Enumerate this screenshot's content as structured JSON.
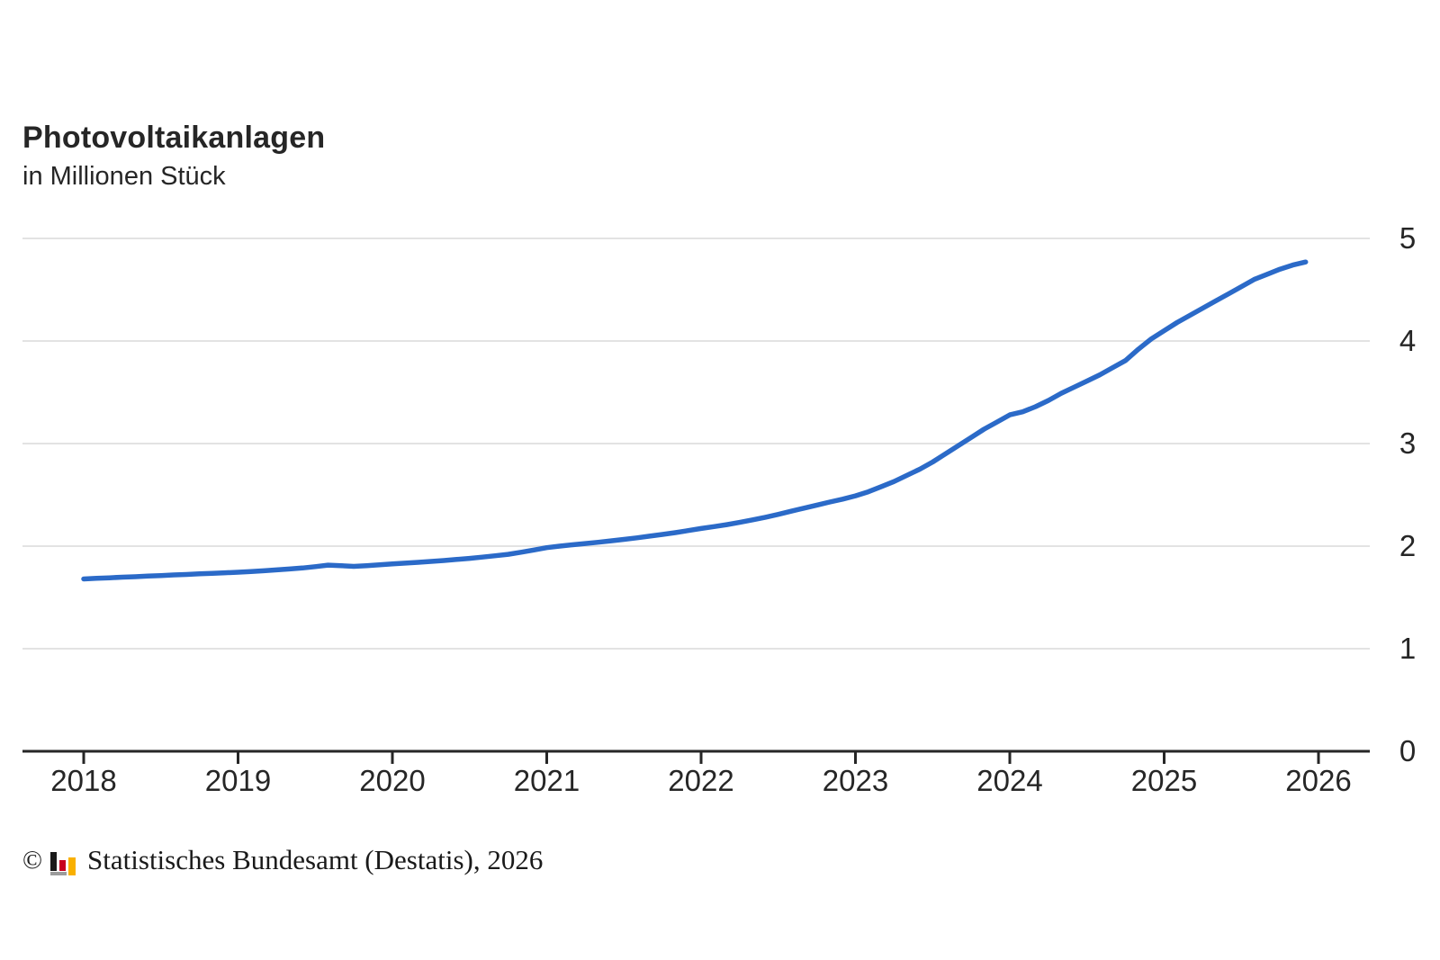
{
  "chart_data": {
    "type": "line",
    "title": "Photovoltaikanlagen",
    "subtitle": "in Millionen Stück",
    "unit": "Millionen Stück",
    "legend": "none",
    "grid": "horizontal",
    "ylim": [
      0,
      5
    ],
    "y_tick_labels": [
      "0",
      "1",
      "2",
      "3",
      "4",
      "5"
    ],
    "x_tick_labels": [
      "2018",
      "2019",
      "2020",
      "2021",
      "2022",
      "2023",
      "2024",
      "2025",
      "2026"
    ],
    "series": [
      {
        "name": "Photovoltaikanlagen",
        "frequency": "monthly",
        "start": "2018-01",
        "end": "2025-12",
        "values": [
          1.68,
          1.686,
          1.691,
          1.697,
          1.702,
          1.708,
          1.713,
          1.719,
          1.724,
          1.73,
          1.735,
          1.74,
          1.746,
          1.753,
          1.76,
          1.768,
          1.777,
          1.787,
          1.8,
          1.815,
          1.81,
          1.803,
          1.81,
          1.818,
          1.826,
          1.834,
          1.842,
          1.851,
          1.86,
          1.87,
          1.881,
          1.893,
          1.906,
          1.92,
          1.94,
          1.962,
          1.985,
          2.0,
          2.013,
          2.025,
          2.038,
          2.052,
          2.066,
          2.081,
          2.097,
          2.114,
          2.132,
          2.152,
          2.172,
          2.19,
          2.21,
          2.232,
          2.256,
          2.282,
          2.31,
          2.34,
          2.37,
          2.4,
          2.43,
          2.458,
          2.49,
          2.53,
          2.58,
          2.63,
          2.69,
          2.75,
          2.82,
          2.9,
          2.98,
          3.06,
          3.14,
          3.21,
          3.28,
          3.31,
          3.36,
          3.42,
          3.49,
          3.55,
          3.61,
          3.67,
          3.74,
          3.81,
          3.92,
          4.02,
          4.1,
          4.18,
          4.25,
          4.32,
          4.39,
          4.46,
          4.53,
          4.6,
          4.65,
          4.7,
          4.74,
          4.77
        ]
      }
    ]
  },
  "footer": {
    "copyright_symbol": "©",
    "source": "Statistisches Bundesamt (Destatis), 2026"
  },
  "colors": {
    "line": "#2b6ac8",
    "grid": "#e3e3e3",
    "axis": "#262626",
    "text": "#262626",
    "logo_black": "#1a1a1a",
    "logo_red": "#c8001e",
    "logo_gold": "#f9b000",
    "logo_base": "#9c9c9c"
  }
}
